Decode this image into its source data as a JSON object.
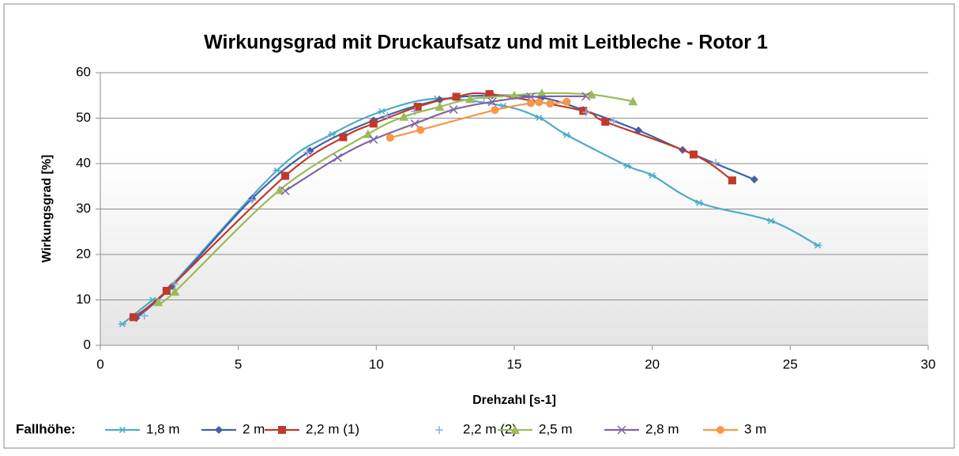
{
  "chart_data": {
    "type": "scatter",
    "title": "Wirkungsgrad mit Druckaufsatz und mit Leitbleche - Rotor 1",
    "x_label": "Drehzahl [s-1]",
    "y_label": "Wirkungsgrad [%]",
    "legend_title": "Fallhöhe:",
    "xlim": [
      0,
      30
    ],
    "xticks": [
      0,
      5,
      10,
      15,
      20,
      25,
      30
    ],
    "ylim": [
      0,
      60
    ],
    "yticks": [
      0,
      10,
      20,
      30,
      40,
      50,
      60
    ],
    "grid": true,
    "legend": "bottom",
    "series": [
      {
        "name": "1,8 m",
        "color": "#4bacc6",
        "marker": "asterisk",
        "line": true,
        "x": [
          0.8,
          1.9,
          2.4,
          6.4,
          8.4,
          10.2,
          12.2,
          14.6,
          15.9,
          16.9,
          19.1,
          20.0,
          21.7,
          24.3,
          26.0
        ],
        "values": [
          4.7,
          10,
          12,
          38.5,
          46.5,
          51.5,
          54.3,
          52.7,
          50.1,
          46.3,
          39.5,
          37.4,
          31.4,
          27.4,
          22
        ]
      },
      {
        "name": "2 m",
        "color": "#4060a8",
        "marker": "diamond",
        "line": true,
        "x": [
          1.3,
          2.6,
          5.5,
          7.6,
          9.9,
          12.3,
          14.2,
          16.0,
          17.5,
          19.5,
          21.1,
          23.7
        ],
        "values": [
          6,
          13,
          32.3,
          42.8,
          49.5,
          54,
          55,
          54.5,
          51.8,
          47.3,
          43,
          36.5
        ]
      },
      {
        "name": "2,2 m (1)",
        "color": "#c0392b",
        "marker": "square",
        "line": true,
        "x": [
          1.2,
          2.4,
          6.7,
          8.8,
          9.9,
          11.5,
          12.9,
          14.1,
          17.5,
          18.3,
          21.5,
          22.9
        ],
        "values": [
          6.2,
          12,
          37.3,
          45.8,
          48.8,
          52.5,
          54.7,
          55.3,
          51.6,
          49.2,
          42,
          36.3
        ]
      },
      {
        "name": "2,2 m (2)",
        "color": "#8faadc",
        "marker": "plus",
        "line": false,
        "x": [
          1.6,
          2.7,
          5.5,
          7.5,
          10.4,
          11.4,
          13.9,
          17.6,
          18.6,
          22.3
        ],
        "values": [
          6.5,
          13.5,
          32,
          42.5,
          50.5,
          51.5,
          54.4,
          51.3,
          49.4,
          40.2
        ]
      },
      {
        "name": "2,5 m",
        "color": "#9bbb59",
        "marker": "triangle",
        "line": true,
        "x": [
          2.1,
          2.7,
          6.5,
          9.7,
          11.0,
          12.3,
          13.4,
          15.0,
          16.0,
          17.8,
          19.3
        ],
        "values": [
          9.5,
          11.8,
          34.2,
          46.5,
          50.3,
          52.5,
          54.2,
          55,
          55.5,
          55.2,
          53.7
        ]
      },
      {
        "name": "2,8 m",
        "color": "#8064a2",
        "marker": "x",
        "line": true,
        "x": [
          6.7,
          8.6,
          9.9,
          11.4,
          12.8,
          14.2,
          15.6,
          17.6
        ],
        "values": [
          34,
          41.3,
          45.3,
          48.8,
          51.9,
          53.6,
          54.7,
          54.8
        ]
      },
      {
        "name": "3 m",
        "color": "#f79646",
        "marker": "circle",
        "line": true,
        "x": [
          10.5,
          11.6,
          14.3,
          15.6,
          15.9,
          16.3,
          16.9
        ],
        "values": [
          45.7,
          47.4,
          51.8,
          53.3,
          53.5,
          53.2,
          53.6
        ]
      }
    ]
  }
}
